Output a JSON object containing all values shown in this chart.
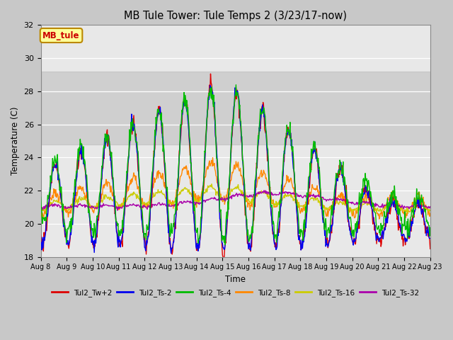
{
  "title": "MB Tule Tower: Tule Temps 2 (3/23/17-now)",
  "xlabel": "Time",
  "ylabel": "Temperature (C)",
  "ylim": [
    18,
    32
  ],
  "yticks": [
    18,
    20,
    22,
    24,
    26,
    28,
    30,
    32
  ],
  "xtick_labels": [
    "Aug 8",
    "Aug 9",
    "Aug 10",
    "Aug 11",
    "Aug 12",
    "Aug 13",
    "Aug 14",
    "Aug 15",
    "Aug 16",
    "Aug 17",
    "Aug 18",
    "Aug 19",
    "Aug 20",
    "Aug 21",
    "Aug 22",
    "Aug 23"
  ],
  "shaded_band_lo": 24.8,
  "shaded_band_hi": 29.2,
  "legend_label": "MB_tule",
  "legend_box_color": "#ffff99",
  "legend_box_edge": "#bb8800",
  "series_colors": {
    "Tul2_Tw+2": "#dd0000",
    "Tul2_Ts-2": "#0000ee",
    "Tul2_Ts-4": "#00bb00",
    "Tul2_Ts-8": "#ff8800",
    "Tul2_Ts-16": "#cccc00",
    "Tul2_Ts-32": "#aa00aa"
  },
  "fig_bg": "#c8c8c8",
  "ax_bg": "#e8e8e8"
}
